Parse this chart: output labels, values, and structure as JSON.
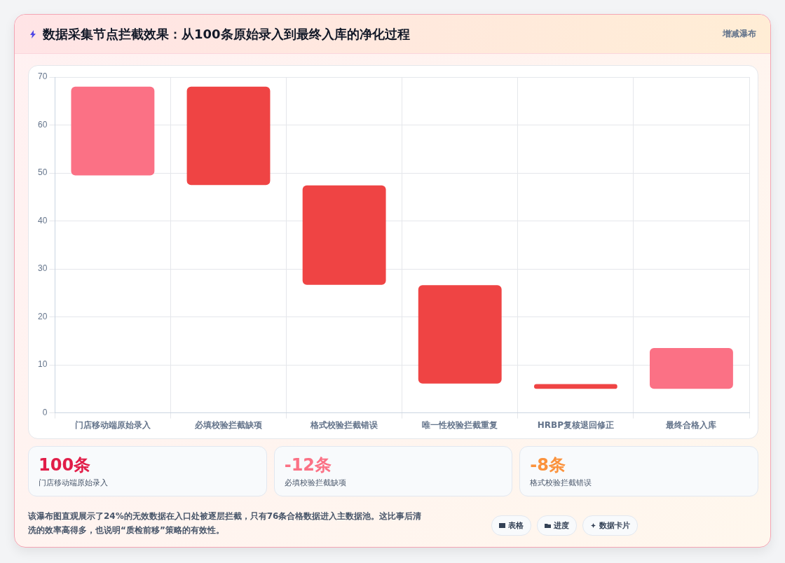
{
  "chart_data": {
    "type": "bar",
    "title": "数据采集节点拦截效果：从100条原始录入到最终入库的净化过程",
    "categories": [
      "门店移动端原始录入",
      "必填校验拦截缺项",
      "格式校验拦截错误",
      "唯一性校验拦截重复",
      "HRBP复核退回修正",
      "最终合格入库"
    ],
    "values": [
      18.5,
      20.5,
      20.7,
      20.5,
      1,
      8.5
    ],
    "base": [
      49.5,
      47.5,
      26.7,
      6.1,
      5,
      5
    ],
    "colors": [
      "#fb7185",
      "#ef4444",
      "#ef4444",
      "#ef4444",
      "#ef4444",
      "#fb7185"
    ],
    "ylim": [
      0,
      70
    ],
    "yticks": [
      0,
      10,
      20,
      30,
      40,
      50,
      60,
      70
    ],
    "grid": true,
    "legend": false,
    "annotations": [
      "增减瀑布",
      "100条",
      "门店移动端原始录入",
      "-12条",
      "必填校验拦截缺项",
      "-8条",
      "格式校验拦截错误",
      "该瀑布图直观展示了24%的无效数据在入口处被逐层拦截，只有76条合格数据进入主数据池。这比事后清洗的效率高得多，也说明“质检前移”策略的有效性。",
      "表格",
      "进度",
      "数据卡片"
    ]
  }
}
